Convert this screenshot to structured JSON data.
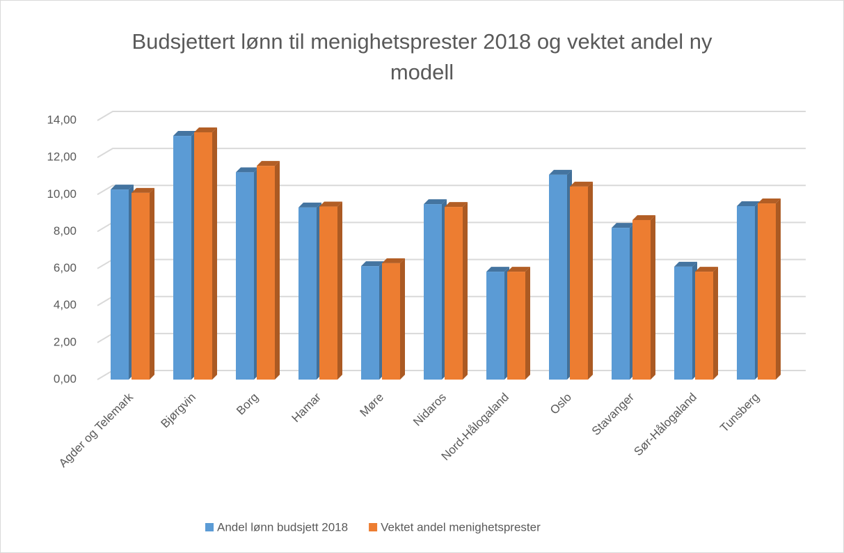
{
  "chart_data": {
    "type": "bar3d",
    "title": "Budsjettert lønn til menighetsprester 2018 og vektet andel ny modell",
    "categories": [
      "Agder og Telemark",
      "Bjørgvin",
      "Borg",
      "Hamar",
      "Møre",
      "Nidaros",
      "Nord-Hålogaland",
      "Oslo",
      "Stavanger",
      "Sør-Hålogaland",
      "Tunsberg"
    ],
    "series": [
      {
        "name": "Andel lønn budsjett 2018",
        "color": "#5b9bd5",
        "values": [
          10.27,
          13.17,
          11.2,
          9.3,
          6.13,
          9.48,
          5.83,
          11.07,
          8.2,
          6.1,
          9.37
        ]
      },
      {
        "name": "Vektet andel menighetsprester",
        "color": "#ed7d31",
        "values": [
          10.09,
          13.36,
          11.55,
          9.35,
          6.29,
          9.33,
          5.83,
          10.43,
          8.62,
          5.83,
          9.52
        ]
      }
    ],
    "ylim": [
      0,
      14
    ],
    "yticks": [
      {
        "value": 0,
        "label": "0,00"
      },
      {
        "value": 2,
        "label": "2,00"
      },
      {
        "value": 4,
        "label": "4,00"
      },
      {
        "value": 6,
        "label": "6,00"
      },
      {
        "value": 8,
        "label": "8,00"
      },
      {
        "value": 10,
        "label": "10,00"
      },
      {
        "value": 12,
        "label": "12,00"
      },
      {
        "value": 14,
        "label": "14,00"
      }
    ],
    "grid": true,
    "legend": "bottom"
  }
}
